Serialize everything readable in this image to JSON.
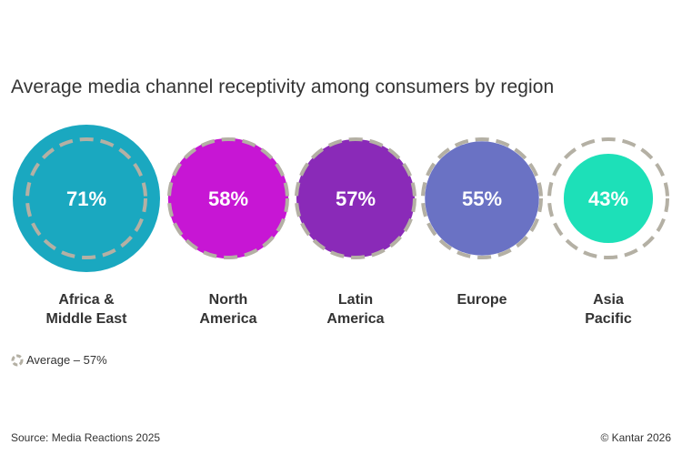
{
  "title": "Average media channel receptivity among consumers by region",
  "legend": {
    "label": "Average – 57%"
  },
  "footer": {
    "source": "Source: Media Reactions 2025",
    "copyright": "© Kantar 2026"
  },
  "colors": {
    "africa_middle_east": "#1aa8c0",
    "north_america": "#c716d4",
    "latin_america": "#8a2ab8",
    "europe": "#6a72c4",
    "asia_pacific": "#1de0b8",
    "average_ring": "#b4b0a4",
    "text": "#333333"
  },
  "chart_data": {
    "type": "bubble",
    "title": "Average media channel receptivity among consumers by region",
    "unit": "%",
    "average": 57,
    "average_label": "Average – 57%",
    "categories": [
      {
        "name": "Africa & Middle East",
        "lines": [
          "Africa &",
          "Middle East"
        ],
        "value": 71,
        "label": "71%",
        "color": "#1aa8c0"
      },
      {
        "name": "North America",
        "lines": [
          "North",
          "America"
        ],
        "value": 58,
        "label": "58%",
        "color": "#c716d4"
      },
      {
        "name": "Latin America",
        "lines": [
          "Latin",
          "America"
        ],
        "value": 57,
        "label": "57%",
        "color": "#8a2ab8"
      },
      {
        "name": "Europe",
        "lines": [
          "Europe"
        ],
        "value": 55,
        "label": "55%",
        "color": "#6a72c4"
      },
      {
        "name": "Asia Pacific",
        "lines": [
          "Asia",
          "Pacific"
        ],
        "value": 43,
        "label": "43%",
        "color": "#1de0b8"
      }
    ]
  }
}
